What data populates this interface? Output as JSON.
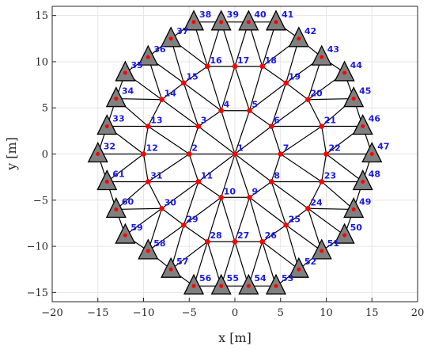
{
  "chart_data": {
    "type": "scatter",
    "xlabel": "x [m]",
    "ylabel": "y [m]",
    "xlim": [
      -20,
      20
    ],
    "ylim": [
      -16,
      16
    ],
    "xticks": [
      -20,
      -15,
      -10,
      -5,
      0,
      5,
      10,
      15,
      20
    ],
    "yticks": [
      -15,
      -10,
      -5,
      0,
      5,
      10,
      15
    ],
    "grid": true,
    "colors": {
      "free_node": "#ff0000",
      "support": "#808080",
      "member": "#000000",
      "label": "#1a1ae6"
    },
    "free_nodes": [
      {
        "id": "1",
        "x": 0,
        "y": 0
      },
      {
        "id": "2",
        "x": -5,
        "y": 0
      },
      {
        "id": "3",
        "x": -4,
        "y": 3
      },
      {
        "id": "4",
        "x": -1.5,
        "y": 4.7
      },
      {
        "id": "5",
        "x": 1.6,
        "y": 4.7
      },
      {
        "id": "6",
        "x": 4,
        "y": 3
      },
      {
        "id": "7",
        "x": 5,
        "y": 0
      },
      {
        "id": "8",
        "x": 4,
        "y": -3
      },
      {
        "id": "9",
        "x": 1.6,
        "y": -4.7
      },
      {
        "id": "10",
        "x": -1.5,
        "y": -4.7
      },
      {
        "id": "11",
        "x": -4,
        "y": -3
      },
      {
        "id": "12",
        "x": -10,
        "y": 0
      },
      {
        "id": "13",
        "x": -9.5,
        "y": 3
      },
      {
        "id": "14",
        "x": -8,
        "y": 5.9
      },
      {
        "id": "15",
        "x": -5.6,
        "y": 7.7
      },
      {
        "id": "16",
        "x": -3,
        "y": 9.5
      },
      {
        "id": "17",
        "x": 0,
        "y": 9.5
      },
      {
        "id": "18",
        "x": 3,
        "y": 9.5
      },
      {
        "id": "19",
        "x": 5.6,
        "y": 7.7
      },
      {
        "id": "20",
        "x": 8,
        "y": 5.9
      },
      {
        "id": "21",
        "x": 9.5,
        "y": 3
      },
      {
        "id": "22",
        "x": 10,
        "y": 0
      },
      {
        "id": "23",
        "x": 9.5,
        "y": -3
      },
      {
        "id": "24",
        "x": 8,
        "y": -5.9
      },
      {
        "id": "25",
        "x": 5.6,
        "y": -7.7
      },
      {
        "id": "26",
        "x": 3,
        "y": -9.5
      },
      {
        "id": "27",
        "x": 0,
        "y": -9.5
      },
      {
        "id": "28",
        "x": -3,
        "y": -9.5
      },
      {
        "id": "29",
        "x": -5.6,
        "y": -7.7
      },
      {
        "id": "30",
        "x": -8,
        "y": -5.9
      },
      {
        "id": "31",
        "x": -9.5,
        "y": -3
      }
    ],
    "support_nodes": [
      {
        "id": "32",
        "x": -15,
        "y": 0
      },
      {
        "id": "33",
        "x": -14,
        "y": 3
      },
      {
        "id": "34",
        "x": -13,
        "y": 6
      },
      {
        "id": "35",
        "x": -12,
        "y": 8.8
      },
      {
        "id": "36",
        "x": -9.5,
        "y": 10.5
      },
      {
        "id": "37",
        "x": -7,
        "y": 12.5
      },
      {
        "id": "38",
        "x": -4.5,
        "y": 14.3
      },
      {
        "id": "39",
        "x": -1.5,
        "y": 14.3
      },
      {
        "id": "40",
        "x": 1.5,
        "y": 14.3
      },
      {
        "id": "41",
        "x": 4.5,
        "y": 14.3
      },
      {
        "id": "42",
        "x": 7,
        "y": 12.5
      },
      {
        "id": "43",
        "x": 9.5,
        "y": 10.5
      },
      {
        "id": "44",
        "x": 12,
        "y": 8.8
      },
      {
        "id": "45",
        "x": 13,
        "y": 6
      },
      {
        "id": "46",
        "x": 14,
        "y": 3
      },
      {
        "id": "47",
        "x": 15,
        "y": 0
      },
      {
        "id": "48",
        "x": 14,
        "y": -3
      },
      {
        "id": "49",
        "x": 13,
        "y": -6
      },
      {
        "id": "50",
        "x": 12,
        "y": -8.8
      },
      {
        "id": "51",
        "x": 9.5,
        "y": -10.5
      },
      {
        "id": "52",
        "x": 7,
        "y": -12.5
      },
      {
        "id": "53",
        "x": 4.5,
        "y": -14.3
      },
      {
        "id": "54",
        "x": 1.5,
        "y": -14.3
      },
      {
        "id": "55",
        "x": -1.5,
        "y": -14.3
      },
      {
        "id": "56",
        "x": -4.5,
        "y": -14.3
      },
      {
        "id": "57",
        "x": -7,
        "y": -12.5
      },
      {
        "id": "58",
        "x": -9.5,
        "y": -10.5
      },
      {
        "id": "59",
        "x": -12,
        "y": -8.8
      },
      {
        "id": "60",
        "x": -13,
        "y": -6
      },
      {
        "id": "61",
        "x": -14,
        "y": -3
      }
    ],
    "members": [
      [
        "1",
        "2"
      ],
      [
        "1",
        "3"
      ],
      [
        "1",
        "4"
      ],
      [
        "1",
        "5"
      ],
      [
        "1",
        "6"
      ],
      [
        "1",
        "7"
      ],
      [
        "1",
        "8"
      ],
      [
        "1",
        "9"
      ],
      [
        "1",
        "10"
      ],
      [
        "1",
        "11"
      ],
      [
        "2",
        "3"
      ],
      [
        "3",
        "4"
      ],
      [
        "4",
        "5"
      ],
      [
        "5",
        "6"
      ],
      [
        "6",
        "7"
      ],
      [
        "7",
        "8"
      ],
      [
        "8",
        "9"
      ],
      [
        "9",
        "10"
      ],
      [
        "10",
        "11"
      ],
      [
        "11",
        "2"
      ],
      [
        "2",
        "12"
      ],
      [
        "2",
        "13"
      ],
      [
        "2",
        "31"
      ],
      [
        "3",
        "13"
      ],
      [
        "3",
        "14"
      ],
      [
        "3",
        "15"
      ],
      [
        "4",
        "15"
      ],
      [
        "4",
        "16"
      ],
      [
        "4",
        "17"
      ],
      [
        "5",
        "17"
      ],
      [
        "5",
        "18"
      ],
      [
        "5",
        "19"
      ],
      [
        "6",
        "19"
      ],
      [
        "6",
        "20"
      ],
      [
        "6",
        "21"
      ],
      [
        "7",
        "21"
      ],
      [
        "7",
        "22"
      ],
      [
        "7",
        "23"
      ],
      [
        "8",
        "23"
      ],
      [
        "8",
        "24"
      ],
      [
        "8",
        "25"
      ],
      [
        "9",
        "25"
      ],
      [
        "9",
        "26"
      ],
      [
        "9",
        "27"
      ],
      [
        "10",
        "27"
      ],
      [
        "10",
        "28"
      ],
      [
        "10",
        "29"
      ],
      [
        "11",
        "29"
      ],
      [
        "11",
        "30"
      ],
      [
        "11",
        "31"
      ],
      [
        "12",
        "13"
      ],
      [
        "13",
        "14"
      ],
      [
        "14",
        "15"
      ],
      [
        "15",
        "16"
      ],
      [
        "16",
        "17"
      ],
      [
        "17",
        "18"
      ],
      [
        "18",
        "19"
      ],
      [
        "19",
        "20"
      ],
      [
        "20",
        "21"
      ],
      [
        "21",
        "22"
      ],
      [
        "22",
        "23"
      ],
      [
        "23",
        "24"
      ],
      [
        "24",
        "25"
      ],
      [
        "25",
        "26"
      ],
      [
        "26",
        "27"
      ],
      [
        "27",
        "28"
      ],
      [
        "28",
        "29"
      ],
      [
        "29",
        "30"
      ],
      [
        "30",
        "31"
      ],
      [
        "31",
        "12"
      ],
      [
        "12",
        "32"
      ],
      [
        "12",
        "33"
      ],
      [
        "12",
        "61"
      ],
      [
        "13",
        "33"
      ],
      [
        "13",
        "34"
      ],
      [
        "14",
        "34"
      ],
      [
        "14",
        "35"
      ],
      [
        "14",
        "36"
      ],
      [
        "15",
        "36"
      ],
      [
        "15",
        "37"
      ],
      [
        "16",
        "37"
      ],
      [
        "16",
        "38"
      ],
      [
        "16",
        "39"
      ],
      [
        "17",
        "39"
      ],
      [
        "17",
        "40"
      ],
      [
        "18",
        "40"
      ],
      [
        "18",
        "41"
      ],
      [
        "18",
        "42"
      ],
      [
        "19",
        "42"
      ],
      [
        "19",
        "43"
      ],
      [
        "20",
        "43"
      ],
      [
        "20",
        "44"
      ],
      [
        "20",
        "45"
      ],
      [
        "21",
        "45"
      ],
      [
        "21",
        "46"
      ],
      [
        "22",
        "46"
      ],
      [
        "22",
        "47"
      ],
      [
        "22",
        "48"
      ],
      [
        "23",
        "48"
      ],
      [
        "23",
        "49"
      ],
      [
        "24",
        "49"
      ],
      [
        "24",
        "50"
      ],
      [
        "24",
        "51"
      ],
      [
        "25",
        "51"
      ],
      [
        "25",
        "52"
      ],
      [
        "26",
        "52"
      ],
      [
        "26",
        "53"
      ],
      [
        "26",
        "54"
      ],
      [
        "27",
        "54"
      ],
      [
        "27",
        "55"
      ],
      [
        "28",
        "55"
      ],
      [
        "28",
        "56"
      ],
      [
        "28",
        "57"
      ],
      [
        "29",
        "57"
      ],
      [
        "29",
        "58"
      ],
      [
        "30",
        "58"
      ],
      [
        "30",
        "59"
      ],
      [
        "30",
        "60"
      ],
      [
        "31",
        "60"
      ],
      [
        "31",
        "61"
      ],
      [
        "32",
        "33"
      ],
      [
        "33",
        "34"
      ],
      [
        "34",
        "35"
      ],
      [
        "35",
        "36"
      ],
      [
        "36",
        "37"
      ],
      [
        "37",
        "38"
      ],
      [
        "38",
        "39"
      ],
      [
        "39",
        "40"
      ],
      [
        "40",
        "41"
      ],
      [
        "41",
        "42"
      ],
      [
        "42",
        "43"
      ],
      [
        "43",
        "44"
      ],
      [
        "44",
        "45"
      ],
      [
        "45",
        "46"
      ],
      [
        "46",
        "47"
      ],
      [
        "47",
        "48"
      ],
      [
        "48",
        "49"
      ],
      [
        "49",
        "50"
      ],
      [
        "50",
        "51"
      ],
      [
        "51",
        "52"
      ],
      [
        "52",
        "53"
      ],
      [
        "53",
        "54"
      ],
      [
        "54",
        "55"
      ],
      [
        "55",
        "56"
      ],
      [
        "56",
        "57"
      ],
      [
        "57",
        "58"
      ],
      [
        "58",
        "59"
      ],
      [
        "59",
        "60"
      ],
      [
        "60",
        "61"
      ],
      [
        "61",
        "32"
      ]
    ]
  }
}
